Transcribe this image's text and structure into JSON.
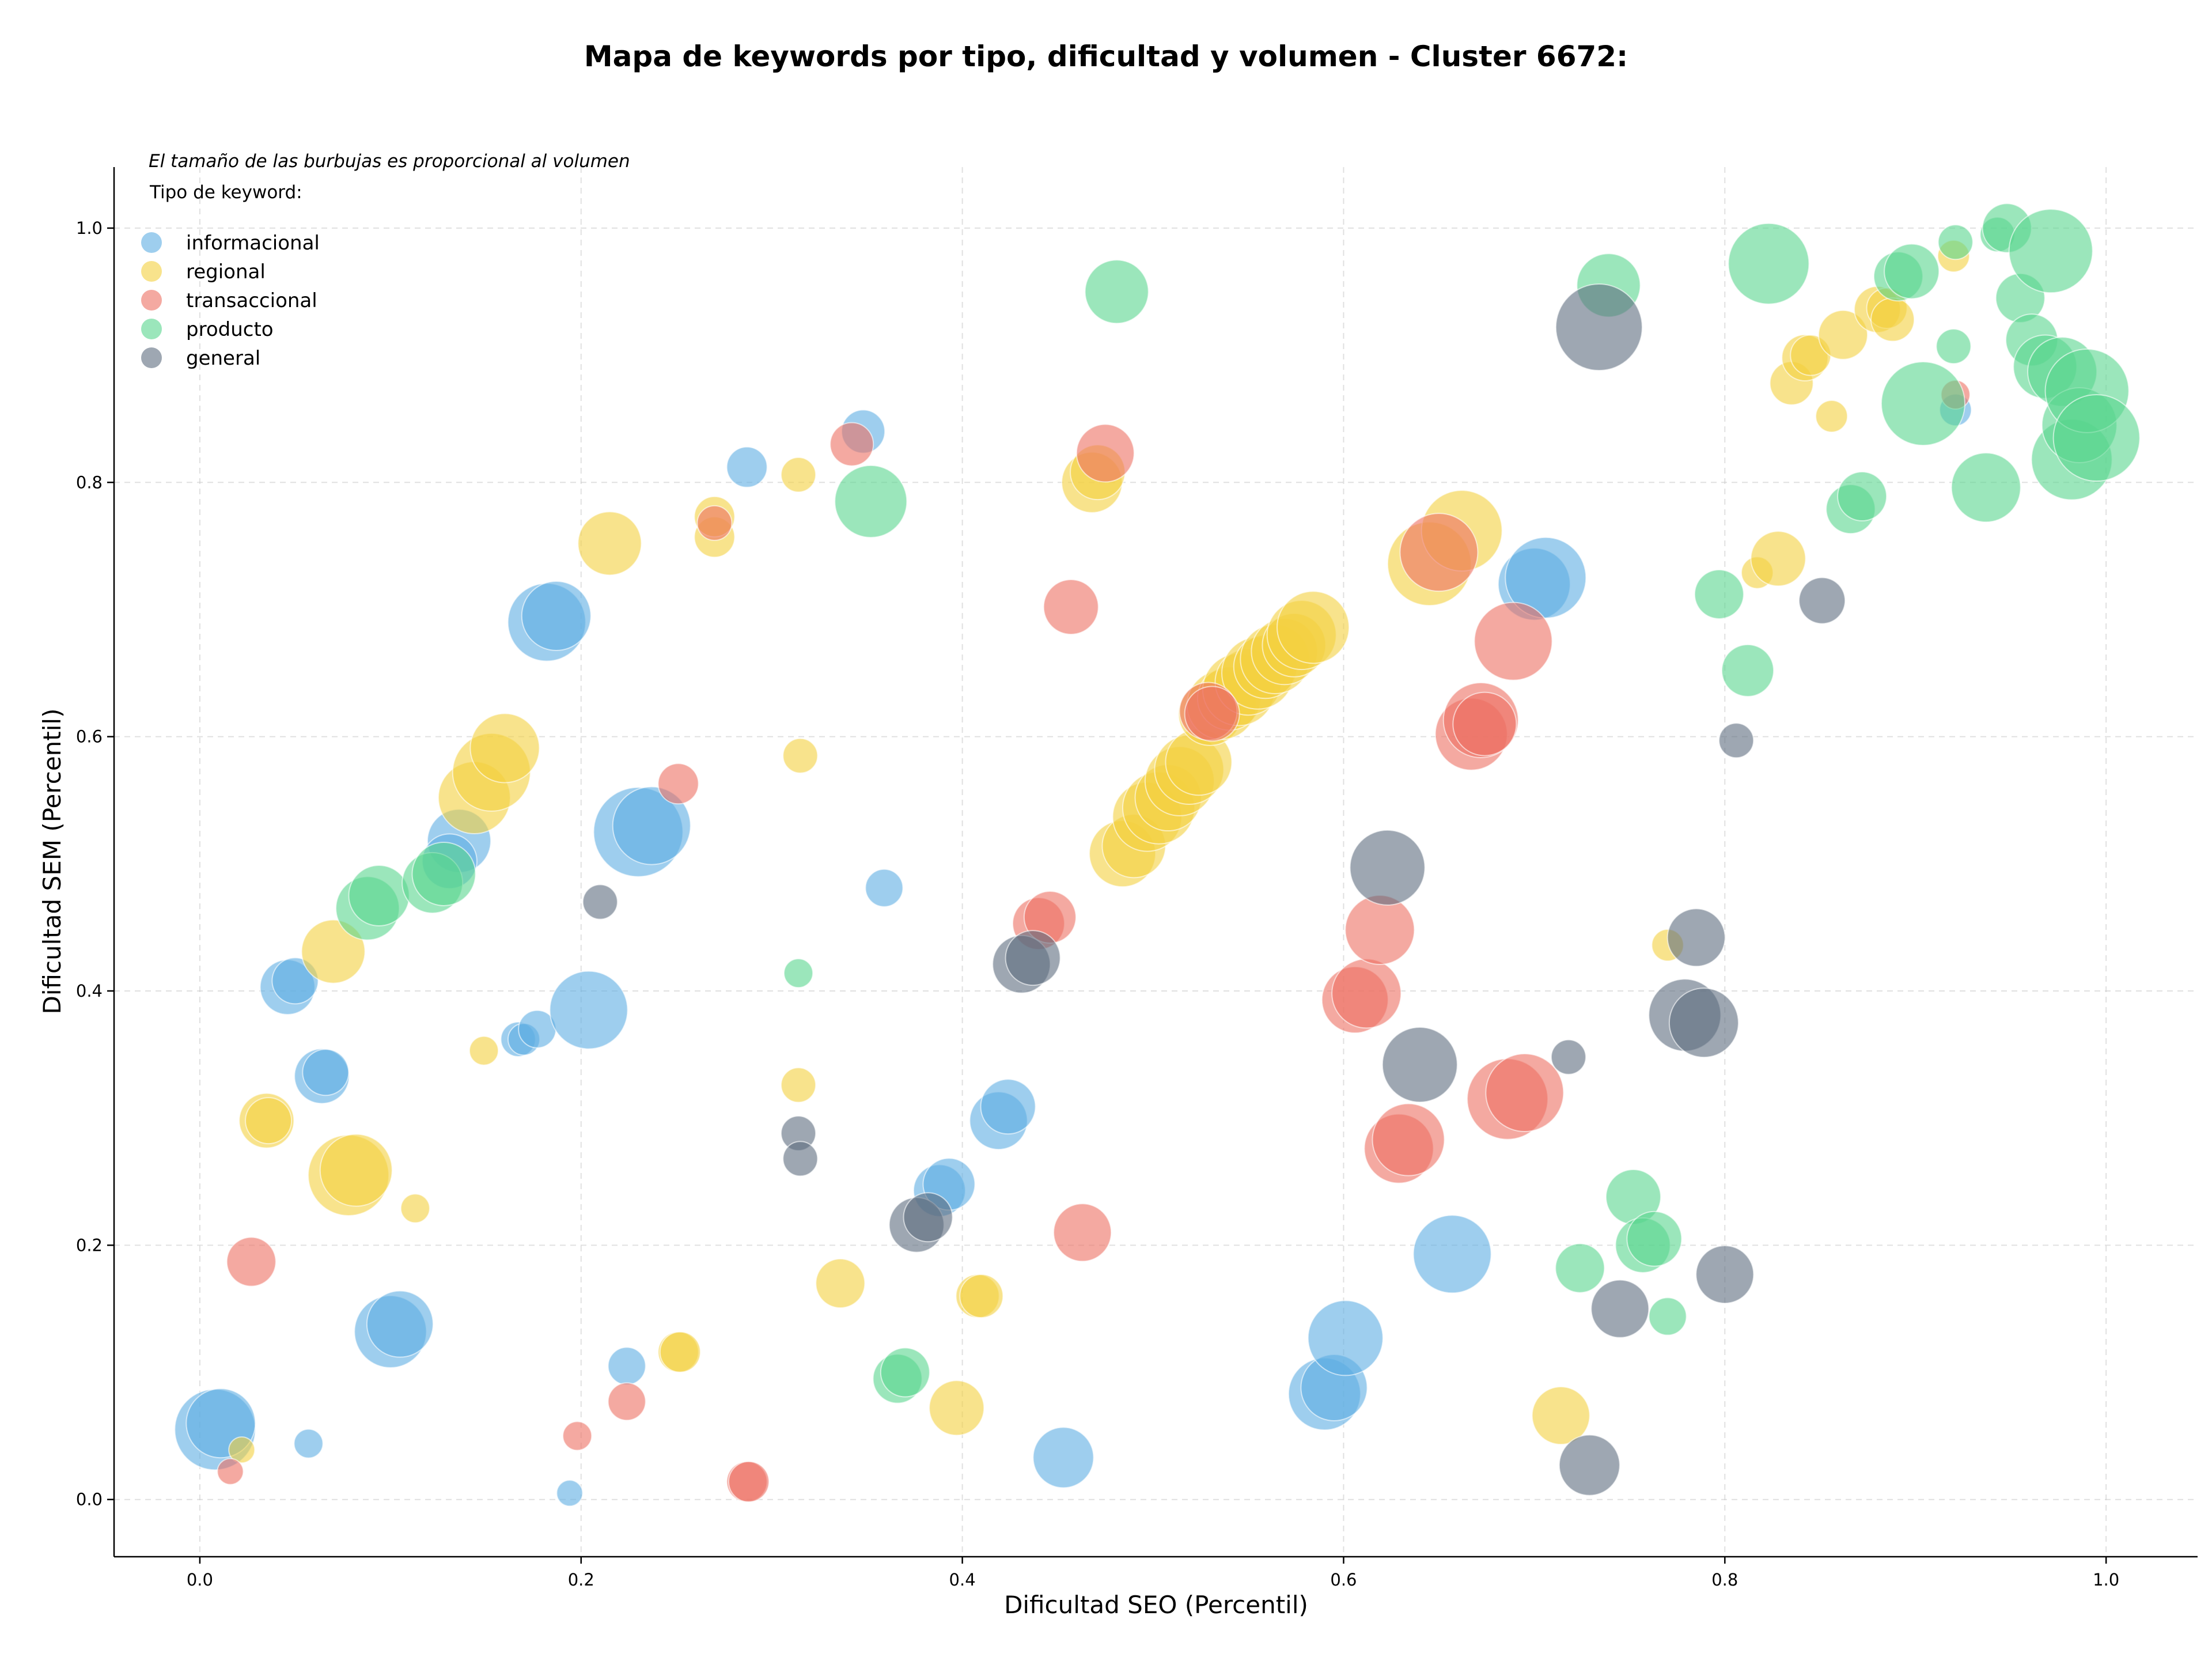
{
  "chart_data": {
    "type": "scatter",
    "title": "Mapa de keywords por tipo, dificultad y volumen - Cluster 6672:",
    "xlabel": "Dificultad SEO (Percentil)",
    "ylabel": "Dificultad SEM (Percentil)",
    "xlim": [
      -0.045,
      1.048
    ],
    "ylim": [
      -0.045,
      1.048
    ],
    "xticks": [
      "0.0",
      "0.2",
      "0.4",
      "0.6",
      "0.8",
      "1.0"
    ],
    "yticks": [
      "0.0",
      "0.2",
      "0.4",
      "0.6",
      "0.8",
      "1.0"
    ],
    "grid": true,
    "size_note": "El tamaño de las burbujas es proporcional al volumen",
    "legend_title": "Tipo de keyword:",
    "legend_position": "top-left",
    "series": [
      {
        "name": "informacional",
        "color": "#5DADE2",
        "points": [
          [
            0.008,
            0.055,
            28
          ],
          [
            0.011,
            0.06,
            24
          ],
          [
            0.046,
            0.403,
            19
          ],
          [
            0.05,
            0.408,
            16
          ],
          [
            0.057,
            0.044,
            10
          ],
          [
            0.064,
            0.333,
            19
          ],
          [
            0.066,
            0.336,
            16
          ],
          [
            0.1,
            0.132,
            25
          ],
          [
            0.105,
            0.138,
            23
          ],
          [
            0.167,
            0.362,
            12
          ],
          [
            0.17,
            0.362,
            11
          ],
          [
            0.177,
            0.37,
            13
          ],
          [
            0.182,
            0.69,
            27
          ],
          [
            0.187,
            0.695,
            24
          ],
          [
            0.194,
            0.005,
            9
          ],
          [
            0.204,
            0.385,
            27
          ],
          [
            0.224,
            0.105,
            13
          ],
          [
            0.23,
            0.525,
            31
          ],
          [
            0.237,
            0.53,
            27
          ],
          [
            0.136,
            0.518,
            22
          ],
          [
            0.131,
            0.502,
            19
          ],
          [
            0.287,
            0.812,
            14
          ],
          [
            0.348,
            0.84,
            15
          ],
          [
            0.359,
            0.481,
            13
          ],
          [
            0.388,
            0.243,
            18
          ],
          [
            0.393,
            0.248,
            18
          ],
          [
            0.419,
            0.298,
            20
          ],
          [
            0.424,
            0.309,
            19
          ],
          [
            0.453,
            0.033,
            21
          ],
          [
            0.59,
            0.083,
            25
          ],
          [
            0.595,
            0.088,
            23
          ],
          [
            0.601,
            0.127,
            26
          ],
          [
            0.657,
            0.193,
            27
          ],
          [
            0.7,
            0.72,
            25
          ],
          [
            0.706,
            0.725,
            28
          ],
          [
            0.921,
            0.857,
            11
          ]
        ]
      },
      {
        "name": "regional",
        "color": "#F4D03F",
        "points": [
          [
            0.022,
            0.039,
            9
          ],
          [
            0.035,
            0.298,
            19
          ],
          [
            0.036,
            0.298,
            16
          ],
          [
            0.07,
            0.431,
            22
          ],
          [
            0.078,
            0.255,
            28
          ],
          [
            0.082,
            0.259,
            25
          ],
          [
            0.113,
            0.229,
            10
          ],
          [
            0.149,
            0.353,
            10
          ],
          [
            0.144,
            0.552,
            25
          ],
          [
            0.153,
            0.572,
            27
          ],
          [
            0.16,
            0.591,
            24
          ],
          [
            0.215,
            0.752,
            22
          ],
          [
            0.251,
            0.116,
            14
          ],
          [
            0.252,
            0.116,
            14
          ],
          [
            0.27,
            0.757,
            14
          ],
          [
            0.27,
            0.773,
            14
          ],
          [
            0.314,
            0.806,
            12
          ],
          [
            0.315,
            0.585,
            12
          ],
          [
            0.314,
            0.326,
            12
          ],
          [
            0.336,
            0.17,
            17
          ],
          [
            0.397,
            0.072,
            19
          ],
          [
            0.408,
            0.16,
            15
          ],
          [
            0.41,
            0.16,
            15
          ],
          [
            0.468,
            0.8,
            21
          ],
          [
            0.471,
            0.808,
            19
          ],
          [
            0.484,
            0.508,
            23
          ],
          [
            0.49,
            0.514,
            22
          ],
          [
            0.497,
            0.537,
            24
          ],
          [
            0.503,
            0.544,
            25
          ],
          [
            0.508,
            0.552,
            23
          ],
          [
            0.514,
            0.565,
            24
          ],
          [
            0.519,
            0.574,
            24
          ],
          [
            0.524,
            0.58,
            23
          ],
          [
            0.53,
            0.618,
            22
          ],
          [
            0.536,
            0.625,
            24
          ],
          [
            0.54,
            0.63,
            22
          ],
          [
            0.545,
            0.637,
            25
          ],
          [
            0.55,
            0.643,
            23
          ],
          [
            0.555,
            0.65,
            25
          ],
          [
            0.559,
            0.655,
            22
          ],
          [
            0.564,
            0.661,
            24
          ],
          [
            0.569,
            0.667,
            23
          ],
          [
            0.574,
            0.672,
            22
          ],
          [
            0.578,
            0.68,
            24
          ],
          [
            0.584,
            0.686,
            25
          ],
          [
            0.645,
            0.736,
            29
          ],
          [
            0.662,
            0.762,
            28
          ],
          [
            0.714,
            0.066,
            20
          ],
          [
            0.77,
            0.436,
            11
          ],
          [
            0.817,
            0.729,
            11
          ],
          [
            0.828,
            0.74,
            19
          ],
          [
            0.835,
            0.878,
            15
          ],
          [
            0.842,
            0.898,
            16
          ],
          [
            0.845,
            0.9,
            14
          ],
          [
            0.856,
            0.852,
            11
          ],
          [
            0.862,
            0.916,
            17
          ],
          [
            0.88,
            0.936,
            16
          ],
          [
            0.885,
            0.937,
            14
          ],
          [
            0.888,
            0.928,
            15
          ],
          [
            0.92,
            0.978,
            11
          ]
        ]
      },
      {
        "name": "transaccional",
        "color": "#EC7063",
        "points": [
          [
            0.016,
            0.022,
            9
          ],
          [
            0.027,
            0.187,
            17
          ],
          [
            0.198,
            0.05,
            10
          ],
          [
            0.224,
            0.077,
            13
          ],
          [
            0.251,
            0.563,
            14
          ],
          [
            0.27,
            0.768,
            12
          ],
          [
            0.287,
            0.014,
            14
          ],
          [
            0.288,
            0.014,
            14
          ],
          [
            0.342,
            0.83,
            15
          ],
          [
            0.44,
            0.453,
            18
          ],
          [
            0.446,
            0.458,
            18
          ],
          [
            0.457,
            0.702,
            19
          ],
          [
            0.463,
            0.21,
            20
          ],
          [
            0.475,
            0.823,
            20
          ],
          [
            0.529,
            0.62,
            20
          ],
          [
            0.531,
            0.618,
            19
          ],
          [
            0.606,
            0.393,
            23
          ],
          [
            0.612,
            0.398,
            24
          ],
          [
            0.619,
            0.448,
            24
          ],
          [
            0.629,
            0.276,
            24
          ],
          [
            0.634,
            0.283,
            25
          ],
          [
            0.667,
            0.602,
            25
          ],
          [
            0.672,
            0.613,
            26
          ],
          [
            0.674,
            0.61,
            22
          ],
          [
            0.65,
            0.745,
            27
          ],
          [
            0.689,
            0.675,
            27
          ],
          [
            0.686,
            0.315,
            28
          ],
          [
            0.695,
            0.32,
            27
          ],
          [
            0.921,
            0.869,
            10
          ]
        ]
      },
      {
        "name": "producto",
        "color": "#58D68D",
        "points": [
          [
            0.088,
            0.465,
            22
          ],
          [
            0.094,
            0.475,
            21
          ],
          [
            0.122,
            0.485,
            21
          ],
          [
            0.128,
            0.492,
            22
          ],
          [
            0.352,
            0.785,
            25
          ],
          [
            0.314,
            0.414,
            10
          ],
          [
            0.366,
            0.095,
            17
          ],
          [
            0.37,
            0.1,
            17
          ],
          [
            0.481,
            0.95,
            22
          ],
          [
            0.739,
            0.955,
            22
          ],
          [
            0.724,
            0.182,
            17
          ],
          [
            0.752,
            0.238,
            19
          ],
          [
            0.757,
            0.2,
            19
          ],
          [
            0.763,
            0.205,
            19
          ],
          [
            0.77,
            0.144,
            13
          ],
          [
            0.797,
            0.712,
            17
          ],
          [
            0.812,
            0.652,
            18
          ],
          [
            0.823,
            0.972,
            28
          ],
          [
            0.866,
            0.779,
            17
          ],
          [
            0.872,
            0.789,
            17
          ],
          [
            0.891,
            0.962,
            17
          ],
          [
            0.898,
            0.966,
            19
          ],
          [
            0.904,
            0.862,
            29
          ],
          [
            0.921,
            0.989,
            12
          ],
          [
            0.92,
            0.907,
            12
          ],
          [
            0.937,
            0.796,
            24
          ],
          [
            0.943,
            0.995,
            12
          ],
          [
            0.948,
            1.0,
            17
          ],
          [
            0.955,
            0.945,
            17
          ],
          [
            0.961,
            0.912,
            18
          ],
          [
            0.968,
            0.891,
            22
          ],
          [
            0.971,
            0.982,
            29
          ],
          [
            0.977,
            0.887,
            24
          ],
          [
            0.982,
            0.818,
            28
          ],
          [
            0.986,
            0.845,
            26
          ],
          [
            0.99,
            0.872,
            29
          ],
          [
            0.995,
            0.835,
            30
          ]
        ]
      },
      {
        "name": "general",
        "color": "#5D6D7E",
        "points": [
          [
            0.21,
            0.47,
            12
          ],
          [
            0.314,
            0.288,
            12
          ],
          [
            0.315,
            0.268,
            12
          ],
          [
            0.376,
            0.216,
            19
          ],
          [
            0.382,
            0.222,
            17
          ],
          [
            0.431,
            0.421,
            20
          ],
          [
            0.437,
            0.426,
            19
          ],
          [
            0.623,
            0.497,
            26
          ],
          [
            0.64,
            0.342,
            26
          ],
          [
            0.718,
            0.348,
            12
          ],
          [
            0.729,
            0.027,
            21
          ],
          [
            0.734,
            0.922,
            30
          ],
          [
            0.745,
            0.15,
            20
          ],
          [
            0.779,
            0.381,
            25
          ],
          [
            0.785,
            0.442,
            20
          ],
          [
            0.789,
            0.375,
            24
          ],
          [
            0.8,
            0.177,
            20
          ],
          [
            0.806,
            0.597,
            12
          ],
          [
            0.851,
            0.707,
            16
          ]
        ]
      }
    ]
  }
}
